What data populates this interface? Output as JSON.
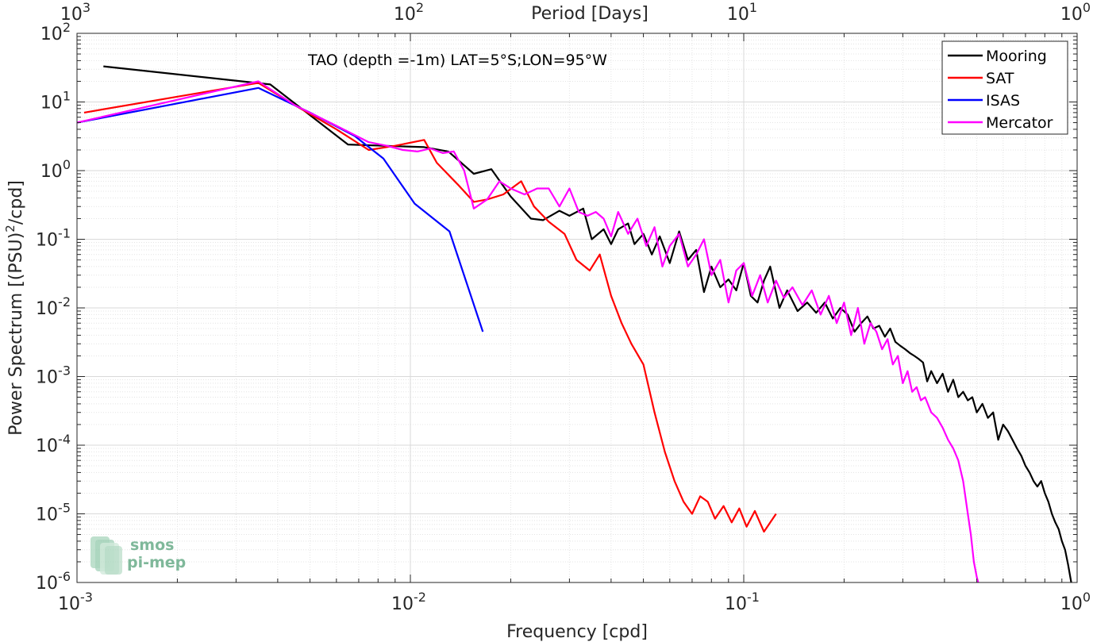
{
  "chart_data": {
    "type": "line",
    "annotation": "TAO (depth =-1m) LAT=5°S;LON=95°W",
    "xlabel": "Frequency [cpd]",
    "ylabel_main": "Power Spectrum [(PSU)",
    "ylabel_sup": "2",
    "ylabel_tail": "/cpd]",
    "top_axis_label": "Period [Days]",
    "xscale": "log",
    "yscale": "log",
    "xlim": [
      0.001,
      1
    ],
    "ylim": [
      1e-06,
      100
    ],
    "grid": true,
    "legend_position": "top-right",
    "x_ticks": [
      {
        "value": 0.001,
        "base": "10",
        "exp": "-3"
      },
      {
        "value": 0.01,
        "base": "10",
        "exp": "-2"
      },
      {
        "value": 0.1,
        "base": "10",
        "exp": "-1"
      },
      {
        "value": 1,
        "base": "10",
        "exp": "0"
      }
    ],
    "top_ticks": [
      {
        "value": 0.001,
        "base": "10",
        "exp": "3"
      },
      {
        "value": 0.01,
        "base": "10",
        "exp": "2"
      },
      {
        "value": 0.1,
        "base": "10",
        "exp": "1"
      },
      {
        "value": 1,
        "base": "10",
        "exp": "0"
      }
    ],
    "y_ticks": [
      {
        "value": 100,
        "base": "10",
        "exp": "2"
      },
      {
        "value": 10,
        "base": "10",
        "exp": "1"
      },
      {
        "value": 1,
        "base": "10",
        "exp": "0"
      },
      {
        "value": 0.1,
        "base": "10",
        "exp": "-1"
      },
      {
        "value": 0.01,
        "base": "10",
        "exp": "-2"
      },
      {
        "value": 0.001,
        "base": "10",
        "exp": "-3"
      },
      {
        "value": 0.0001,
        "base": "10",
        "exp": "-4"
      },
      {
        "value": 1e-05,
        "base": "10",
        "exp": "-5"
      },
      {
        "value": 1e-06,
        "base": "10",
        "exp": "-6"
      }
    ],
    "series": [
      {
        "name": "Mooring",
        "color": "#000000",
        "x": [
          0.0012,
          0.0038,
          0.0065,
          0.0083,
          0.011,
          0.013,
          0.0155,
          0.0175,
          0.02,
          0.023,
          0.025,
          0.028,
          0.03,
          0.033,
          0.035,
          0.038,
          0.04,
          0.042,
          0.045,
          0.047,
          0.05,
          0.053,
          0.056,
          0.06,
          0.064,
          0.068,
          0.072,
          0.076,
          0.08,
          0.085,
          0.09,
          0.095,
          0.1,
          0.105,
          0.11,
          0.115,
          0.12,
          0.128,
          0.135,
          0.145,
          0.155,
          0.165,
          0.175,
          0.185,
          0.195,
          0.205,
          0.215,
          0.225,
          0.235,
          0.245,
          0.255,
          0.265,
          0.275,
          0.285,
          0.295,
          0.305,
          0.315,
          0.325,
          0.335,
          0.345,
          0.355,
          0.365,
          0.38,
          0.395,
          0.41,
          0.425,
          0.44,
          0.455,
          0.47,
          0.485,
          0.5,
          0.52,
          0.54,
          0.56,
          0.58,
          0.6,
          0.62,
          0.64,
          0.66,
          0.68,
          0.7,
          0.72,
          0.74,
          0.76,
          0.78,
          0.8,
          0.82,
          0.84,
          0.86,
          0.88,
          0.9,
          0.92,
          0.94,
          0.96
        ],
        "y": [
          33,
          18,
          2.4,
          2.3,
          2.2,
          1.9,
          0.9,
          1.05,
          0.42,
          0.2,
          0.19,
          0.26,
          0.22,
          0.28,
          0.1,
          0.14,
          0.085,
          0.14,
          0.17,
          0.085,
          0.12,
          0.06,
          0.11,
          0.045,
          0.13,
          0.05,
          0.07,
          0.017,
          0.04,
          0.02,
          0.026,
          0.018,
          0.045,
          0.015,
          0.012,
          0.025,
          0.04,
          0.01,
          0.018,
          0.009,
          0.012,
          0.0085,
          0.012,
          0.007,
          0.01,
          0.008,
          0.0045,
          0.006,
          0.0075,
          0.005,
          0.0055,
          0.0038,
          0.005,
          0.0032,
          0.0028,
          0.0025,
          0.0022,
          0.002,
          0.0018,
          0.0016,
          0.00085,
          0.0012,
          0.0008,
          0.0011,
          0.0006,
          0.0009,
          0.0005,
          0.0006,
          0.00045,
          0.0005,
          0.0003,
          0.0004,
          0.00025,
          0.0003,
          0.00012,
          0.0002,
          0.00016,
          0.00012,
          9e-05,
          7e-05,
          5e-05,
          4e-05,
          3e-05,
          2.5e-05,
          3e-05,
          2e-05,
          1.5e-05,
          1e-05,
          7.5e-06,
          6e-06,
          4e-06,
          3e-06,
          1.8e-06,
          1e-06
        ]
      },
      {
        "name": "SAT",
        "color": "#ff0000",
        "x": [
          0.00105,
          0.0035,
          0.0045,
          0.006,
          0.0075,
          0.009,
          0.011,
          0.012,
          0.014,
          0.0155,
          0.017,
          0.019,
          0.0215,
          0.0235,
          0.026,
          0.029,
          0.0315,
          0.0345,
          0.037,
          0.04,
          0.043,
          0.046,
          0.05,
          0.054,
          0.058,
          0.062,
          0.066,
          0.07,
          0.074,
          0.078,
          0.082,
          0.087,
          0.092,
          0.097,
          0.102,
          0.108,
          0.115,
          0.125
        ],
        "y": [
          7.0,
          19,
          9,
          4,
          2.0,
          2.3,
          2.8,
          1.3,
          0.6,
          0.35,
          0.38,
          0.45,
          0.7,
          0.3,
          0.18,
          0.12,
          0.05,
          0.035,
          0.06,
          0.015,
          0.006,
          0.003,
          0.0015,
          0.0003,
          8e-05,
          3e-05,
          1.5e-05,
          1e-05,
          1.8e-05,
          1.5e-05,
          8.5e-06,
          1.3e-05,
          7.5e-06,
          1.2e-05,
          6.5e-06,
          1.1e-05,
          5.5e-06,
          1e-05
        ]
      },
      {
        "name": "ISAS",
        "color": "#0000ff",
        "x": [
          0.001,
          0.0035,
          0.005,
          0.0068,
          0.0083,
          0.0103,
          0.0131,
          0.0165
        ],
        "y": [
          5.0,
          16,
          7,
          3.2,
          1.5,
          0.33,
          0.13,
          0.0045
        ]
      },
      {
        "name": "Mercator",
        "color": "#ff00ff",
        "x": [
          0.001,
          0.0035,
          0.0045,
          0.006,
          0.0075,
          0.0085,
          0.0095,
          0.0105,
          0.0115,
          0.0125,
          0.0135,
          0.0145,
          0.0155,
          0.017,
          0.0185,
          0.02,
          0.022,
          0.024,
          0.026,
          0.028,
          0.03,
          0.032,
          0.034,
          0.036,
          0.038,
          0.04,
          0.042,
          0.045,
          0.048,
          0.051,
          0.054,
          0.057,
          0.06,
          0.064,
          0.068,
          0.072,
          0.076,
          0.08,
          0.085,
          0.09,
          0.095,
          0.1,
          0.106,
          0.112,
          0.118,
          0.125,
          0.132,
          0.14,
          0.15,
          0.16,
          0.17,
          0.18,
          0.19,
          0.2,
          0.21,
          0.22,
          0.23,
          0.24,
          0.25,
          0.26,
          0.27,
          0.28,
          0.29,
          0.3,
          0.31,
          0.32,
          0.33,
          0.34,
          0.35,
          0.365,
          0.38,
          0.395,
          0.41,
          0.425,
          0.44,
          0.455,
          0.47,
          0.48,
          0.49,
          0.5,
          0.505
        ],
        "y": [
          5.0,
          20,
          9,
          4.5,
          2.6,
          2.3,
          2.0,
          1.9,
          2.1,
          1.8,
          1.9,
          1.0,
          0.28,
          0.38,
          0.7,
          0.55,
          0.45,
          0.55,
          0.55,
          0.3,
          0.55,
          0.25,
          0.22,
          0.25,
          0.2,
          0.11,
          0.25,
          0.12,
          0.2,
          0.08,
          0.15,
          0.04,
          0.08,
          0.12,
          0.04,
          0.06,
          0.1,
          0.03,
          0.05,
          0.012,
          0.035,
          0.045,
          0.015,
          0.03,
          0.012,
          0.025,
          0.014,
          0.02,
          0.011,
          0.018,
          0.008,
          0.015,
          0.006,
          0.012,
          0.004,
          0.01,
          0.003,
          0.006,
          0.0045,
          0.0025,
          0.0035,
          0.0015,
          0.002,
          0.0008,
          0.0012,
          0.0006,
          0.0007,
          0.00045,
          0.0005,
          0.0003,
          0.00025,
          0.00018,
          0.00012,
          9e-05,
          6e-05,
          3e-05,
          1e-05,
          5e-06,
          2e-06,
          1.2e-06,
          1e-06
        ]
      }
    ],
    "logo": {
      "line1": "smos",
      "line2": "pi-mep",
      "color": "#7fb89a"
    }
  }
}
